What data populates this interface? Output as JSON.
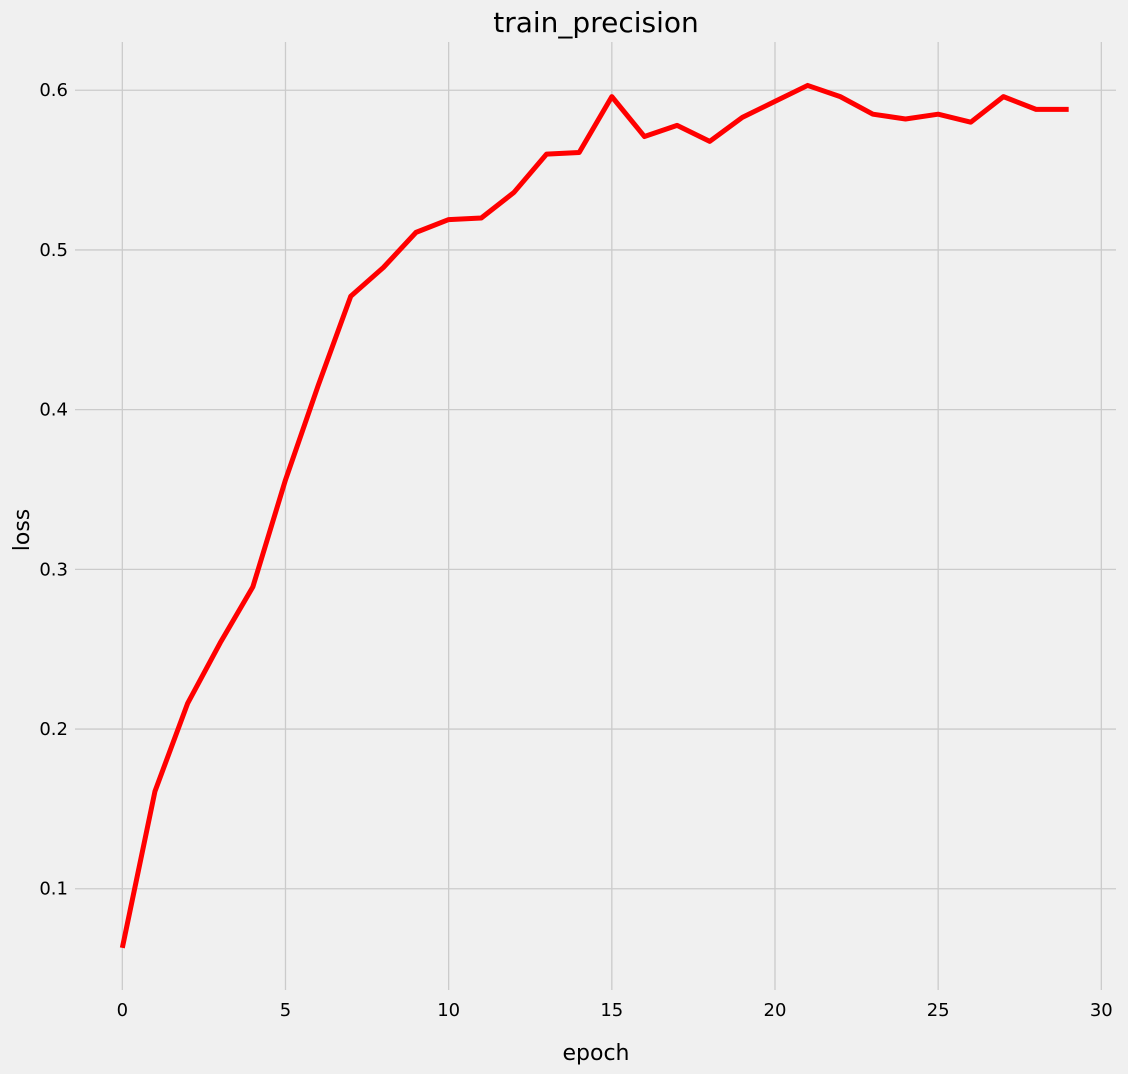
{
  "chart_data": {
    "type": "line",
    "title": "train_precision",
    "xlabel": "epoch",
    "ylabel": "loss",
    "xlim": [
      -1.45,
      30.45
    ],
    "ylim": [
      0.0366,
      0.6302
    ],
    "xticks": [
      0,
      5,
      10,
      15,
      20,
      25,
      30
    ],
    "yticks": [
      0.1,
      0.2,
      0.3,
      0.4,
      0.5,
      0.6
    ],
    "grid": true,
    "background_color": "#f0f0f0",
    "grid_color": "#cbcbcb",
    "series": [
      {
        "color": "#ff0000",
        "x": [
          0,
          1,
          2,
          3,
          4,
          5,
          6,
          7,
          8,
          9,
          10,
          11,
          12,
          13,
          14,
          15,
          16,
          17,
          18,
          19,
          20,
          21,
          22,
          23,
          24,
          25,
          26,
          27,
          28,
          29
        ],
        "values": [
          0.063,
          0.161,
          0.216,
          0.254,
          0.289,
          0.356,
          0.415,
          0.471,
          0.489,
          0.511,
          0.519,
          0.52,
          0.536,
          0.56,
          0.561,
          0.596,
          0.571,
          0.578,
          0.568,
          0.583,
          0.593,
          0.603,
          0.596,
          0.585,
          0.582,
          0.585,
          0.58,
          0.596,
          0.588,
          0.588
        ]
      }
    ]
  }
}
